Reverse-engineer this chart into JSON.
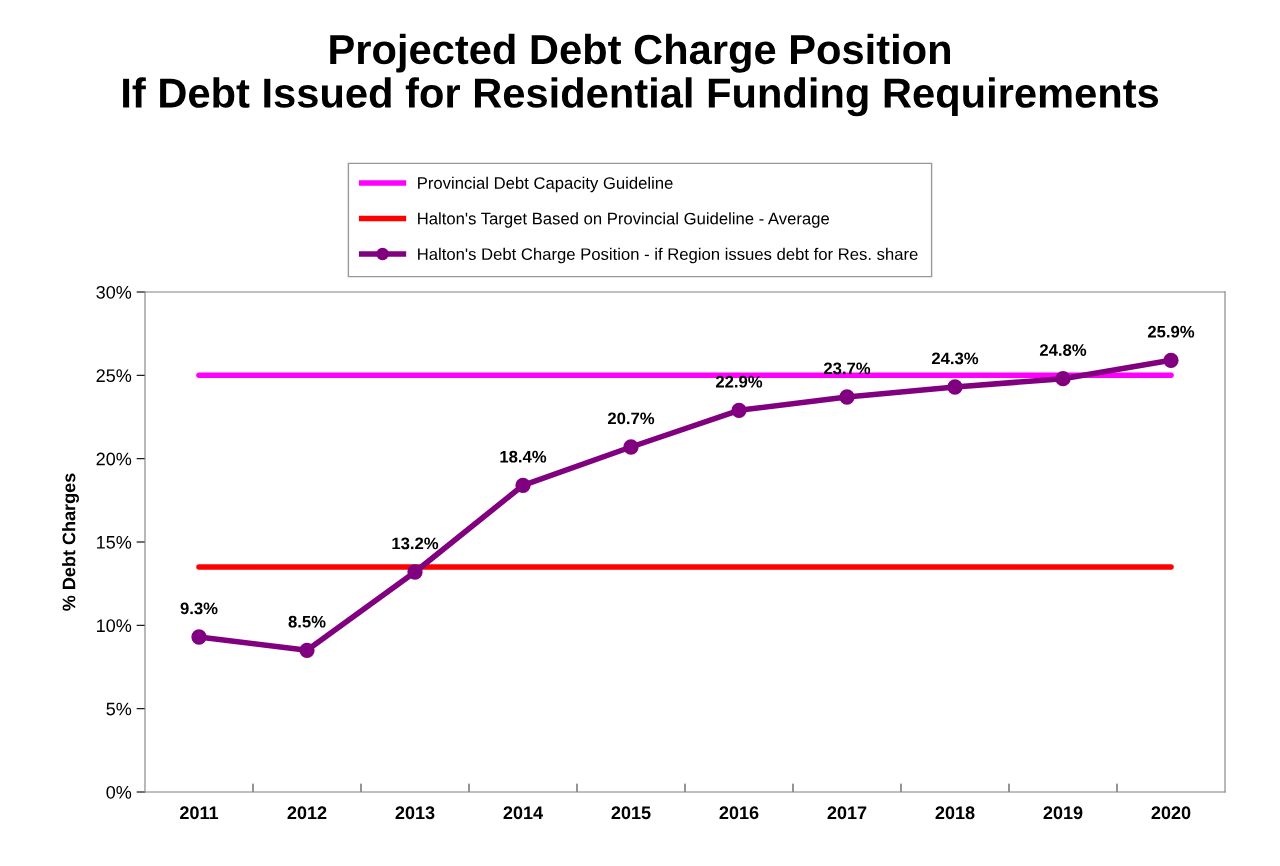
{
  "chart_data": {
    "type": "line",
    "title": "Projected Debt Charge Position\nIf Debt Issued for Residential Funding Requirements",
    "ylabel": "% Debt Charges",
    "categories": [
      "2011",
      "2012",
      "2013",
      "2014",
      "2015",
      "2016",
      "2017",
      "2018",
      "2019",
      "2020"
    ],
    "series": [
      {
        "name": "Provincial Debt Capacity Guideline",
        "color": "#ff00ff",
        "marker": "none",
        "values": [
          25,
          25,
          25,
          25,
          25,
          25,
          25,
          25,
          25,
          25
        ]
      },
      {
        "name": "Halton's Target Based on Provincial Guideline - Average",
        "color": "#ff0000",
        "marker": "none",
        "values": [
          13.5,
          13.5,
          13.5,
          13.5,
          13.5,
          13.5,
          13.5,
          13.5,
          13.5,
          13.5
        ]
      },
      {
        "name": "Halton's Debt Charge Position - if Region issues debt for Res. share",
        "color": "#800080",
        "marker": "circle",
        "values": [
          9.3,
          8.5,
          13.2,
          18.4,
          20.7,
          22.9,
          23.7,
          24.3,
          24.8,
          25.9
        ],
        "value_labels": [
          "9.3%",
          "8.5%",
          "13.2%",
          "18.4%",
          "20.7%",
          "22.9%",
          "23.7%",
          "24.3%",
          "24.8%",
          "25.9%"
        ]
      }
    ],
    "ylim": [
      0,
      30
    ],
    "yticks": [
      {
        "value": 0,
        "label": "0%"
      },
      {
        "value": 5,
        "label": "5%"
      },
      {
        "value": 10,
        "label": "10%"
      },
      {
        "value": 15,
        "label": "15%"
      },
      {
        "value": 20,
        "label": "20%"
      },
      {
        "value": 25,
        "label": "25%"
      },
      {
        "value": 30,
        "label": "30%"
      }
    ],
    "grid": false,
    "legend": "top"
  }
}
